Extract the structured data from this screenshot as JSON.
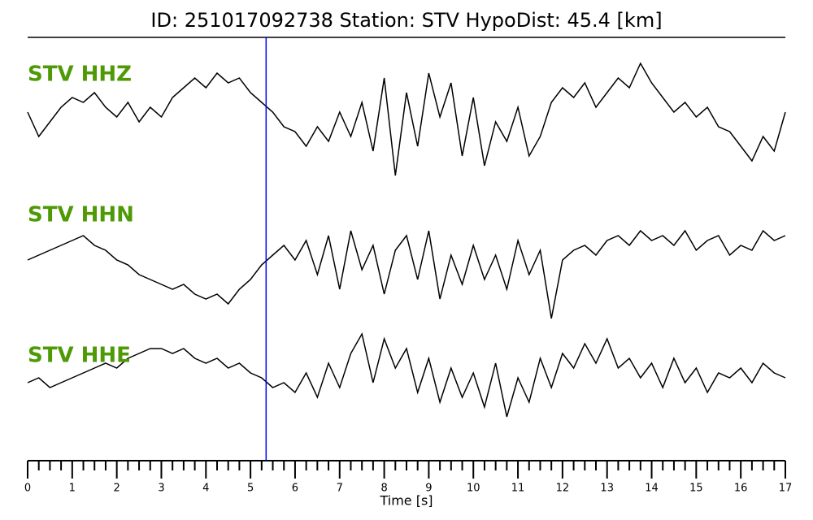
{
  "chart_data": {
    "type": "seismogram",
    "title": "ID: 251017092738   Station: STV   HypoDist:    45.4 [km]",
    "xlabel": "Time [s]",
    "xlim": [
      0,
      17
    ],
    "xticks": [
      0,
      1,
      2,
      3,
      4,
      5,
      6,
      7,
      8,
      9,
      10,
      11,
      12,
      13,
      14,
      15,
      16,
      17
    ],
    "xminorticks": [
      0.25,
      0.5,
      0.75,
      1.25,
      1.5,
      1.75,
      2.25,
      2.5,
      2.75,
      3.25,
      3.5,
      3.75,
      4.25,
      4.5,
      4.75,
      5.25,
      5.5,
      5.75,
      6.25,
      6.5,
      6.75,
      7.25,
      7.5,
      7.75,
      8.25,
      8.5,
      8.75,
      9.25,
      9.5,
      9.75,
      10.25,
      10.5,
      10.75,
      11.25,
      11.5,
      11.75,
      12.25,
      12.5,
      12.75,
      13.25,
      13.5,
      13.75,
      14.25,
      14.5,
      14.75,
      15.25,
      15.5,
      15.75,
      16.25,
      16.5,
      16.75
    ],
    "pick_time": 5.35,
    "pick_color": "#0000ff",
    "label_color": "#4e9a06",
    "x": [
      0,
      0.25,
      0.5,
      0.75,
      1,
      1.25,
      1.5,
      1.75,
      2,
      2.25,
      2.5,
      2.75,
      3,
      3.25,
      3.5,
      3.75,
      4,
      4.25,
      4.5,
      4.75,
      5,
      5.25,
      5.5,
      5.75,
      6,
      6.25,
      6.5,
      6.75,
      7,
      7.25,
      7.5,
      7.75,
      8,
      8.25,
      8.5,
      8.75,
      9,
      9.25,
      9.5,
      9.75,
      10,
      10.25,
      10.5,
      10.75,
      11,
      11.25,
      11.5,
      11.75,
      12,
      12.25,
      12.5,
      12.75,
      13,
      13.25,
      13.5,
      13.75,
      14,
      14.25,
      14.5,
      14.75,
      15,
      15.25,
      15.5,
      15.75,
      16,
      16.25,
      16.5,
      16.75,
      17
    ],
    "series": [
      {
        "name": "STV HHZ",
        "color": "#000000",
        "values": [
          0.2,
          -0.3,
          0.0,
          0.3,
          0.5,
          0.4,
          0.6,
          0.3,
          0.1,
          0.4,
          0.0,
          0.3,
          0.1,
          0.5,
          0.7,
          0.9,
          0.7,
          1.0,
          0.8,
          0.9,
          0.6,
          0.4,
          0.2,
          -0.1,
          -0.2,
          -0.5,
          -0.1,
          -0.4,
          0.2,
          -0.3,
          0.4,
          -0.6,
          0.9,
          -1.1,
          0.6,
          -0.5,
          1.0,
          0.1,
          0.8,
          -0.7,
          0.5,
          -0.9,
          0.0,
          -0.4,
          0.3,
          -0.7,
          -0.3,
          0.4,
          0.7,
          0.5,
          0.8,
          0.3,
          0.6,
          0.9,
          0.7,
          1.2,
          0.8,
          0.5,
          0.2,
          0.4,
          0.1,
          0.3,
          -0.1,
          -0.2,
          -0.5,
          -0.8,
          -0.3,
          -0.6,
          0.2
        ]
      },
      {
        "name": "STV HHN",
        "color": "#000000",
        "values": [
          0.0,
          0.1,
          0.2,
          0.3,
          0.4,
          0.5,
          0.3,
          0.2,
          0.0,
          -0.1,
          -0.3,
          -0.4,
          -0.5,
          -0.6,
          -0.5,
          -0.7,
          -0.8,
          -0.7,
          -0.9,
          -0.6,
          -0.4,
          -0.1,
          0.1,
          0.3,
          0.0,
          0.4,
          -0.3,
          0.5,
          -0.6,
          0.6,
          -0.2,
          0.3,
          -0.7,
          0.2,
          0.5,
          -0.4,
          0.6,
          -0.8,
          0.1,
          -0.5,
          0.3,
          -0.4,
          0.1,
          -0.6,
          0.4,
          -0.3,
          0.2,
          -1.2,
          0.0,
          0.2,
          0.3,
          0.1,
          0.4,
          0.5,
          0.3,
          0.6,
          0.4,
          0.5,
          0.3,
          0.6,
          0.2,
          0.4,
          0.5,
          0.1,
          0.3,
          0.2,
          0.6,
          0.4,
          0.5
        ]
      },
      {
        "name": "STV HHE",
        "color": "#000000",
        "values": [
          -0.1,
          0.0,
          -0.2,
          -0.1,
          0.0,
          0.1,
          0.2,
          0.3,
          0.2,
          0.4,
          0.5,
          0.6,
          0.6,
          0.5,
          0.6,
          0.4,
          0.3,
          0.4,
          0.2,
          0.3,
          0.1,
          0.0,
          -0.2,
          -0.1,
          -0.3,
          0.1,
          -0.4,
          0.3,
          -0.2,
          0.5,
          0.9,
          -0.1,
          0.8,
          0.2,
          0.6,
          -0.3,
          0.4,
          -0.5,
          0.2,
          -0.4,
          0.1,
          -0.6,
          0.3,
          -0.8,
          0.0,
          -0.5,
          0.4,
          -0.2,
          0.5,
          0.2,
          0.7,
          0.3,
          0.8,
          0.2,
          0.4,
          0.0,
          0.3,
          -0.2,
          0.4,
          -0.1,
          0.2,
          -0.3,
          0.1,
          0.0,
          0.2,
          -0.1,
          0.3,
          0.1,
          0.0
        ]
      }
    ]
  }
}
